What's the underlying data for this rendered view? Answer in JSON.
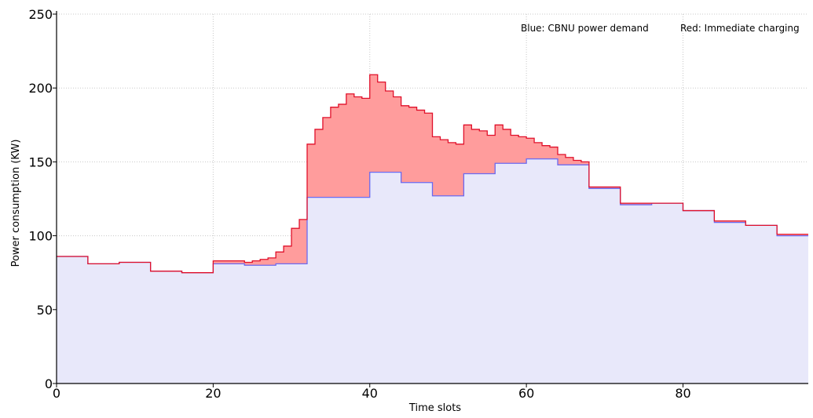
{
  "chart_data": {
    "type": "area",
    "xlabel": "Time slots",
    "ylabel": "Power consumption (KW)",
    "xlim": [
      0,
      96
    ],
    "ylim": [
      0,
      250
    ],
    "xticks": [
      0,
      20,
      40,
      60,
      80
    ],
    "yticks": [
      0,
      50,
      100,
      150,
      200,
      250
    ],
    "grid": true,
    "legend_position": "top-right",
    "legend": {
      "blue": "Blue: CBNU power demand",
      "red": "Red: Immediate charging"
    },
    "colors": {
      "blue_line": "#6a6af0",
      "blue_fill": "#e8e8fa",
      "red_line": "#e0102a",
      "red_fill": "#ff9c9c"
    },
    "series": [
      {
        "name": "Blue: CBNU power demand",
        "step_x": [
          0,
          4,
          8,
          12,
          16,
          20,
          24,
          28,
          32,
          36,
          40,
          44,
          48,
          52,
          56,
          60,
          64,
          68,
          72,
          76,
          80,
          84,
          88,
          92,
          96
        ],
        "values": [
          86,
          81,
          82,
          76,
          75,
          81,
          80,
          81,
          126,
          126,
          143,
          136,
          127,
          142,
          149,
          152,
          148,
          132,
          121,
          122,
          117,
          109,
          107,
          100
        ]
      },
      {
        "name": "Red: Immediate charging",
        "step_x": [
          0,
          4,
          8,
          12,
          16,
          20,
          24,
          25,
          26,
          27,
          28,
          29,
          30,
          31,
          32,
          33,
          34,
          35,
          36,
          37,
          38,
          39,
          40,
          41,
          42,
          43,
          44,
          45,
          46,
          47,
          48,
          49,
          50,
          51,
          52,
          53,
          54,
          55,
          56,
          57,
          58,
          59,
          60,
          61,
          62,
          63,
          64,
          65,
          66,
          67,
          68,
          72,
          76,
          80,
          84,
          88,
          92,
          96
        ],
        "values": [
          86,
          81,
          82,
          76,
          75,
          83,
          82,
          83,
          84,
          85,
          89,
          93,
          105,
          111,
          162,
          172,
          180,
          187,
          189,
          196,
          194,
          193,
          209,
          204,
          198,
          194,
          188,
          187,
          185,
          183,
          167,
          165,
          163,
          162,
          175,
          172,
          171,
          168,
          175,
          172,
          168,
          167,
          166,
          163,
          161,
          160,
          155,
          153,
          151,
          150,
          133,
          122,
          122,
          117,
          110,
          107,
          101
        ]
      }
    ]
  }
}
